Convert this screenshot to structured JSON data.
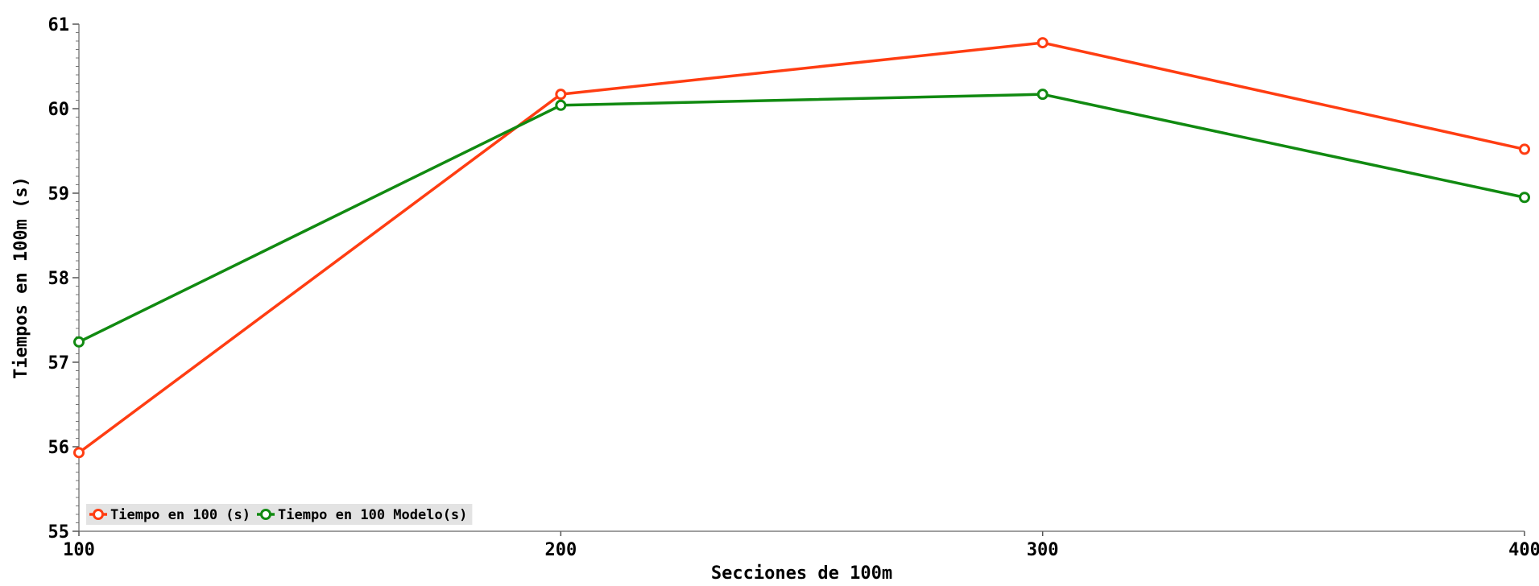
{
  "chart_data": {
    "type": "line",
    "title": "",
    "xlabel": "Secciones de 100m",
    "ylabel": "Tiempos en 100m (s)",
    "x": [
      100,
      200,
      300,
      400
    ],
    "xlim": [
      100,
      400
    ],
    "ylim": [
      55,
      61
    ],
    "x_ticks": [
      100,
      200,
      300,
      400
    ],
    "y_ticks": [
      55,
      56,
      57,
      58,
      59,
      60,
      61
    ],
    "grid": false,
    "legend_position": "bottom-left",
    "series": [
      {
        "name": "Tiempo en 100 (s)",
        "color": "#ff3d12",
        "values": [
          55.93,
          60.17,
          60.78,
          59.52
        ]
      },
      {
        "name": "Tiempo en 100 Modelo(s)",
        "color": "#118a11",
        "values": [
          57.24,
          60.04,
          60.17,
          58.95
        ]
      }
    ]
  }
}
